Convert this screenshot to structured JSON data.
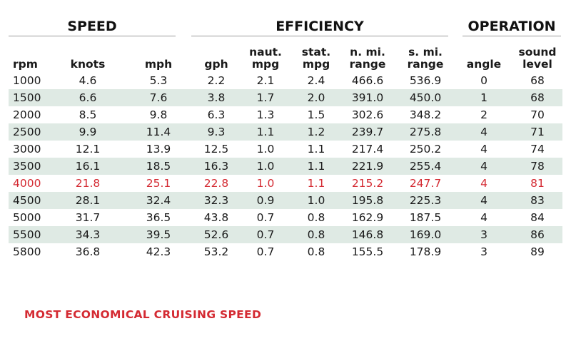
{
  "groups": {
    "speed": "SPEED",
    "efficiency": "EFFICIENCY",
    "operation": "OPERATION"
  },
  "columns": [
    [
      "rpm"
    ],
    [
      "knots"
    ],
    [
      "mph"
    ],
    [
      "gph"
    ],
    [
      "naut.",
      "mpg"
    ],
    [
      "stat.",
      "mpg"
    ],
    [
      "n. mi.",
      "range"
    ],
    [
      "s. mi.",
      "range"
    ],
    [
      "angle"
    ],
    [
      "sound",
      "level"
    ]
  ],
  "rows": [
    [
      "1000",
      "4.6",
      "5.3",
      "2.2",
      "2.1",
      "2.4",
      "466.6",
      "536.9",
      "0",
      "68"
    ],
    [
      "1500",
      "6.6",
      "7.6",
      "3.8",
      "1.7",
      "2.0",
      "391.0",
      "450.0",
      "1",
      "68"
    ],
    [
      "2000",
      "8.5",
      "9.8",
      "6.3",
      "1.3",
      "1.5",
      "302.6",
      "348.2",
      "2",
      "70"
    ],
    [
      "2500",
      "9.9",
      "11.4",
      "9.3",
      "1.1",
      "1.2",
      "239.7",
      "275.8",
      "4",
      "71"
    ],
    [
      "3000",
      "12.1",
      "13.9",
      "12.5",
      "1.0",
      "1.1",
      "217.4",
      "250.2",
      "4",
      "74"
    ],
    [
      "3500",
      "16.1",
      "18.5",
      "16.3",
      "1.0",
      "1.1",
      "221.9",
      "255.4",
      "4",
      "78"
    ],
    [
      "4000",
      "21.8",
      "25.1",
      "22.8",
      "1.0",
      "1.1",
      "215.2",
      "247.7",
      "4",
      "81"
    ],
    [
      "4500",
      "28.1",
      "32.4",
      "32.3",
      "0.9",
      "1.0",
      "195.8",
      "225.3",
      "4",
      "83"
    ],
    [
      "5000",
      "31.7",
      "36.5",
      "43.8",
      "0.7",
      "0.8",
      "162.9",
      "187.5",
      "4",
      "84"
    ],
    [
      "5500",
      "34.3",
      "39.5",
      "52.6",
      "0.7",
      "0.8",
      "146.8",
      "169.0",
      "3",
      "86"
    ],
    [
      "5800",
      "36.8",
      "42.3",
      "53.2",
      "0.7",
      "0.8",
      "155.5",
      "178.9",
      "3",
      "89"
    ]
  ],
  "highlight_row": 6,
  "footnote": "MOST ECONOMICAL CRUISING SPEED",
  "colors": {
    "highlight": "#d42a32",
    "row_shade": "#dfeae4"
  }
}
